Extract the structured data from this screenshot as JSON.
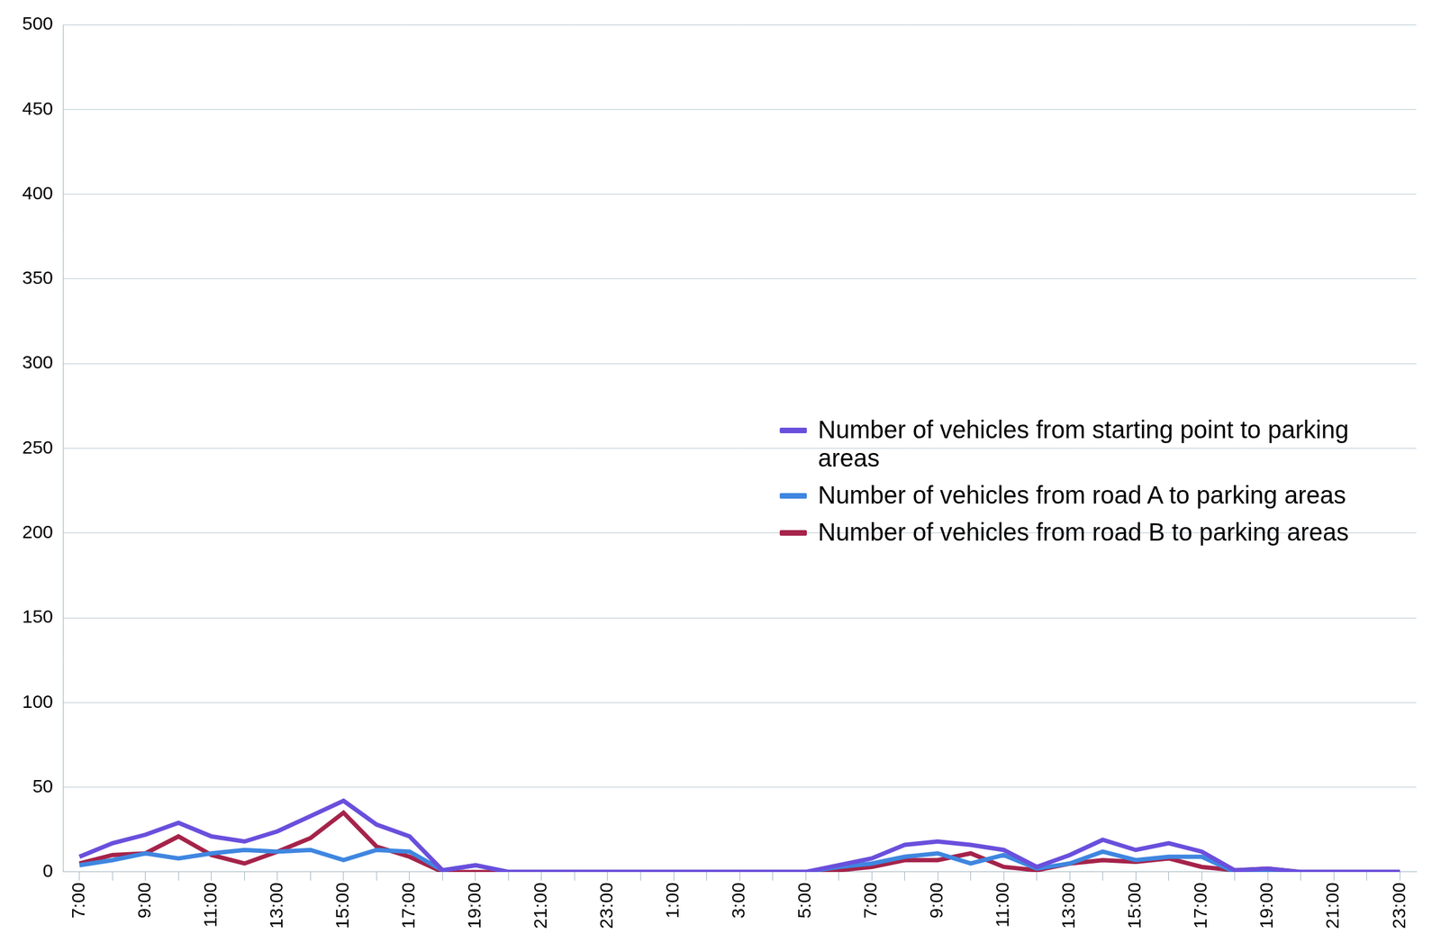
{
  "chart_data": {
    "type": "line",
    "categories": [
      "7:00",
      null,
      "9:00",
      null,
      "11:00",
      null,
      "13:00",
      null,
      "15:00",
      null,
      "17:00",
      null,
      "19:00",
      null,
      "21:00",
      null,
      "23:00",
      null,
      "1:00",
      null,
      "3:00",
      null,
      "5:00",
      null,
      "7:00",
      null,
      "9:00",
      null,
      "11:00",
      null,
      "13:00",
      null,
      "15:00",
      null,
      "17:00",
      null,
      "19:00",
      null,
      "21:00",
      null,
      "23:00"
    ],
    "series": [
      {
        "name": "Number of vehicles from starting point to parking areas",
        "color": "#6a4fdc",
        "values": [
          9,
          17,
          22,
          29,
          21,
          18,
          24,
          33,
          42,
          28,
          21,
          1,
          4,
          0,
          0,
          0,
          0,
          0,
          0,
          0,
          0,
          0,
          0,
          4,
          8,
          16,
          18,
          16,
          13,
          3,
          10,
          19,
          13,
          17,
          12,
          1,
          2,
          0,
          0,
          0,
          0
        ]
      },
      {
        "name": "Number of vehicles from road A to parking areas",
        "color": "#3f86e0",
        "values": [
          4,
          7,
          11,
          8,
          11,
          13,
          12,
          13,
          7,
          13,
          12,
          1,
          4,
          0,
          0,
          0,
          0,
          0,
          0,
          0,
          0,
          0,
          0,
          3,
          5,
          9,
          11,
          5,
          10,
          2,
          5,
          12,
          7,
          9,
          9,
          0,
          0,
          0,
          0,
          0,
          0
        ]
      },
      {
        "name": "Number of vehicles from road B to parking areas",
        "color": "#a5234a",
        "values": [
          5,
          10,
          11,
          21,
          10,
          5,
          12,
          20,
          35,
          15,
          9,
          0,
          0,
          0,
          0,
          0,
          0,
          0,
          0,
          0,
          0,
          0,
          0,
          1,
          3,
          7,
          7,
          11,
          3,
          1,
          5,
          7,
          6,
          8,
          3,
          1,
          2,
          0,
          0,
          0,
          0
        ]
      }
    ],
    "ylim": [
      0,
      500
    ],
    "yticks": [
      0,
      50,
      100,
      150,
      200,
      250,
      300,
      350,
      400,
      450,
      500
    ],
    "grid": true,
    "legend": "right"
  }
}
